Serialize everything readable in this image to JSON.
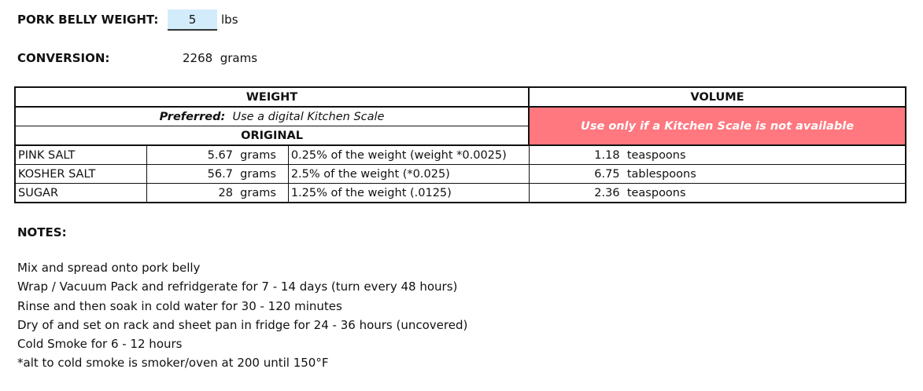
{
  "input": {
    "label": "PORK BELLY WEIGHT:",
    "value": "5",
    "unit": "lbs"
  },
  "conversion": {
    "label": "CONVERSION:",
    "value": "2268",
    "unit": "grams"
  },
  "table": {
    "weight_header": "WEIGHT",
    "volume_header": "VOLUME",
    "preferred_label": "Preferred:",
    "preferred_text": "Use a digital Kitchen Scale",
    "original_header": "ORIGINAL",
    "volume_note": "Use only if a Kitchen Scale is not available",
    "warn_color": "#ff777f",
    "rows": [
      {
        "name": "PINK SALT",
        "grams": "5.67",
        "grams_unit": "grams",
        "desc": "0.25% of the weight (weight *0.0025)",
        "volume": "1.18",
        "volume_unit": "teaspoons"
      },
      {
        "name": "KOSHER SALT",
        "grams": "56.7",
        "grams_unit": "grams",
        "desc": "2.5% of the weight (*0.025)",
        "volume": "6.75",
        "volume_unit": "tablespoons"
      },
      {
        "name": "SUGAR",
        "grams": "28",
        "grams_unit": "grams",
        "desc": "1.25% of the weight (.0125)",
        "volume": "2.36",
        "volume_unit": "teaspoons"
      }
    ]
  },
  "notes": {
    "title": "NOTES:",
    "lines": [
      "Mix and spread onto pork belly",
      "Wrap / Vacuum Pack and refridgerate for 7 - 14 days (turn every 48 hours)",
      "Rinse and then soak in cold water for 30 - 120 minutes",
      "Dry of and set on rack and sheet pan in fridge for 24 - 36 hours (uncovered)",
      "Cold Smoke for 6 - 12 hours",
      "*alt to cold smoke is smoker/oven at 200 until 150°F"
    ]
  }
}
